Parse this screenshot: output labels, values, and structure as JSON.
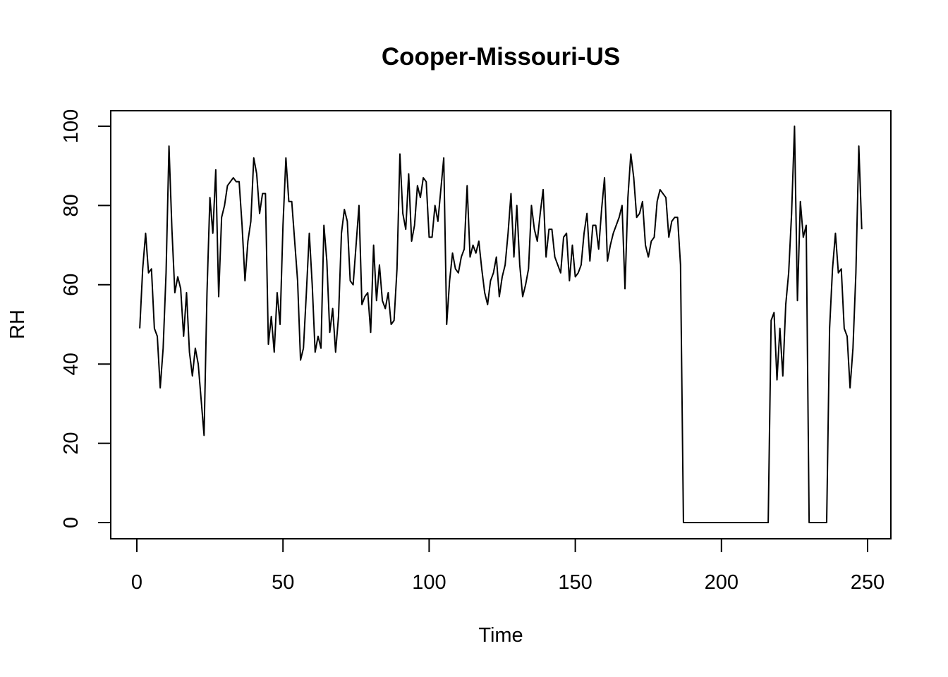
{
  "chart_data": {
    "type": "line",
    "title": "Cooper-Missouri-US",
    "xlabel": "Time",
    "ylabel": "RH",
    "xlim": [
      1,
      248
    ],
    "ylim": [
      0,
      100
    ],
    "x_ticks": [
      0,
      50,
      100,
      150,
      200,
      250
    ],
    "y_ticks": [
      0,
      20,
      40,
      60,
      80,
      100
    ],
    "grid": false,
    "line_color": "#000000",
    "x_start": 1,
    "values": [
      49,
      64,
      73,
      63,
      64,
      49,
      47,
      34,
      44,
      63,
      95,
      74,
      58,
      62,
      59,
      47,
      58,
      43,
      37,
      44,
      40,
      31,
      22,
      58,
      82,
      73,
      89,
      57,
      77,
      80,
      85,
      86,
      87,
      86,
      86,
      75,
      61,
      71,
      76,
      92,
      88,
      78,
      83,
      83,
      45,
      52,
      43,
      58,
      50,
      75,
      92,
      81,
      81,
      71,
      61,
      41,
      44,
      58,
      73,
      60,
      43,
      47,
      44,
      75,
      66,
      48,
      54,
      43,
      52,
      73,
      79,
      76,
      61,
      60,
      70,
      80,
      55,
      57,
      58,
      48,
      70,
      56,
      65,
      56,
      54,
      58,
      50,
      51,
      64,
      93,
      78,
      74,
      88,
      71,
      75,
      85,
      82,
      87,
      86,
      72,
      72,
      80,
      76,
      84,
      92,
      50,
      61,
      68,
      64,
      63,
      67,
      69,
      85,
      67,
      70,
      68,
      71,
      64,
      58,
      55,
      61,
      63,
      67,
      57,
      62,
      65,
      73,
      83,
      67,
      80,
      65,
      57,
      60,
      64,
      80,
      74,
      71,
      78,
      84,
      67,
      74,
      74,
      67,
      65,
      63,
      72,
      73,
      61,
      70,
      62,
      63,
      65,
      73,
      78,
      66,
      75,
      75,
      69,
      79,
      87,
      66,
      70,
      73,
      75,
      77,
      80,
      59,
      82,
      93,
      87,
      77,
      78,
      81,
      70,
      67,
      71,
      72,
      81,
      84,
      83,
      82,
      72,
      76,
      77,
      77,
      65,
      0,
      0,
      0,
      0,
      0,
      0,
      0,
      0,
      0,
      0,
      0,
      0,
      0,
      0,
      0,
      0,
      0,
      0,
      0,
      0,
      0,
      0,
      0,
      0,
      0,
      0,
      0,
      0,
      0,
      0,
      51,
      53,
      36,
      49,
      37,
      55,
      63,
      78,
      100,
      56,
      81,
      72,
      75,
      0,
      0,
      0,
      0,
      0,
      0,
      0,
      49,
      64,
      73,
      63,
      64,
      49,
      47,
      34,
      44,
      63,
      95,
      74
    ]
  }
}
